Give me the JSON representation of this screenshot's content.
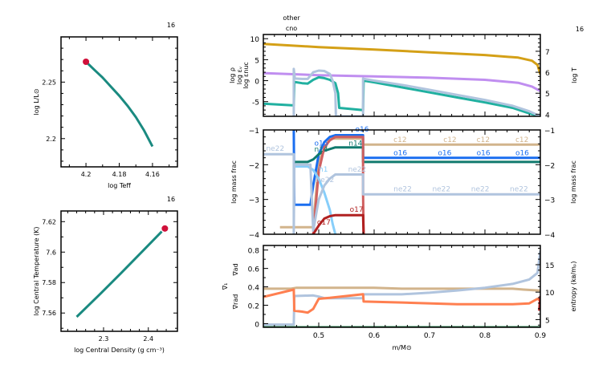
{
  "chart_data": [
    {
      "id": "hr",
      "type": "line",
      "model_number": "16",
      "xlabel": "log Teff",
      "ylabel": "log L/L⊙",
      "xlim": [
        4.215,
        4.145
      ],
      "ylim": [
        2.175,
        2.29
      ],
      "xticks": [
        4.2,
        4.18,
        4.16
      ],
      "xtick_labels": [
        "4.2",
        "4.18",
        "4.16"
      ],
      "yticks": [
        2.2,
        2.25
      ],
      "ytick_labels": [
        "2.2",
        "2.25"
      ],
      "series": [
        {
          "name": "track",
          "color": "#1a8a80",
          "x": [
            4.2,
            4.195,
            4.19,
            4.185,
            4.18,
            4.175,
            4.17,
            4.165,
            4.16
          ],
          "y": [
            2.268,
            2.261,
            2.254,
            2.246,
            2.238,
            2.229,
            2.219,
            2.207,
            2.193
          ]
        }
      ],
      "marker": {
        "x": 4.2,
        "y": 2.268,
        "color": "#d0103a"
      }
    },
    {
      "id": "center",
      "type": "line",
      "model_number": "16",
      "xlabel": "log Central Density (g cm⁻³)",
      "ylabel": "log Central Temperature (K)",
      "xlim": [
        2.205,
        2.465
      ],
      "ylim": [
        7.548,
        7.627
      ],
      "xticks": [
        2.3,
        2.4
      ],
      "xtick_labels": [
        "2.3",
        "2.4"
      ],
      "yticks": [
        7.56,
        7.58,
        7.6,
        7.62
      ],
      "ytick_labels": [
        "7.56",
        "7.58",
        "7.6",
        "7.62"
      ],
      "series": [
        {
          "name": "track",
          "color": "#1a8a80",
          "x": [
            2.24,
            2.29,
            2.34,
            2.39,
            2.43
          ],
          "y": [
            7.5575,
            7.5718,
            7.5865,
            7.6015,
            7.6135
          ]
        }
      ],
      "marker": {
        "x": 2.437,
        "y": 7.6155,
        "color": "#d0103a"
      }
    },
    {
      "id": "profile-top",
      "type": "line",
      "model_number": "16",
      "burn_labels": [
        "other",
        "cno"
      ],
      "xlim": [
        0.4,
        0.9
      ],
      "ylim": [
        -8.5,
        11
      ],
      "y2lim": [
        3.9,
        7.8
      ],
      "yticks": [
        -5,
        0,
        5,
        10
      ],
      "ytick_labels": [
        "-5",
        "0",
        "5",
        "10"
      ],
      "y2ticks": [
        4,
        5,
        6,
        7
      ],
      "y2tick_labels": [
        "4",
        "5",
        "6",
        "7"
      ],
      "left_labels": [
        {
          "text": "log ρ",
          "color": "#c08ef0"
        },
        {
          "text": "log εᵥ",
          "color": "#20b0a0"
        },
        {
          "text": "log εnuc",
          "color": "#b0c4de"
        }
      ],
      "right_label": {
        "text": "log T",
        "color": "#d4a017"
      },
      "series": [
        {
          "name": "log T",
          "axis": "right",
          "color": "#d4a017",
          "x": [
            0.4,
            0.5,
            0.6,
            0.7,
            0.8,
            0.86,
            0.885,
            0.895,
            0.9
          ],
          "y": [
            7.35,
            7.2,
            7.08,
            6.95,
            6.82,
            6.7,
            6.55,
            6.35,
            5.9
          ]
        },
        {
          "name": "log rho",
          "axis": "left",
          "color": "#c08ef0",
          "x": [
            0.4,
            0.5,
            0.6,
            0.7,
            0.8,
            0.86,
            0.885,
            0.9
          ],
          "y": [
            1.8,
            1.3,
            1.0,
            0.7,
            0.2,
            -0.5,
            -1.4,
            -2.5
          ]
        },
        {
          "name": "log eps_grav",
          "axis": "left",
          "color": "#20b0a0",
          "x": [
            0.4,
            0.455,
            0.456,
            0.47,
            0.48,
            0.49,
            0.5,
            0.51,
            0.52,
            0.53,
            0.535,
            0.537,
            0.58,
            0.581,
            0.6,
            0.65,
            0.7,
            0.75,
            0.8,
            0.85,
            0.88,
            0.9
          ],
          "y": [
            -5.5,
            -5.9,
            -0.3,
            -0.6,
            -0.7,
            0.2,
            0.8,
            0.6,
            0.2,
            -0.6,
            -3.0,
            -6.5,
            -7.0,
            0.0,
            -0.4,
            -1.6,
            -2.8,
            -4.0,
            -5.2,
            -6.5,
            -7.8,
            -8.5
          ]
        },
        {
          "name": "log eps_nuc",
          "axis": "left",
          "color": "#b0c4de",
          "x": [
            0.455,
            0.455,
            0.457,
            0.47,
            0.48,
            0.49,
            0.5,
            0.51,
            0.52,
            0.525,
            0.53,
            0.531,
            0.58,
            0.58,
            0.582,
            0.6,
            0.65,
            0.7,
            0.75,
            0.8,
            0.85,
            0.88,
            0.9
          ],
          "y": [
            -8.5,
            2.8,
            0.5,
            0.4,
            0.4,
            2.0,
            2.4,
            2.3,
            1.6,
            0.0,
            -3.0,
            -8.5,
            -8.5,
            0.5,
            0.4,
            0.0,
            -1.0,
            -2.2,
            -3.4,
            -4.6,
            -6.0,
            -7.3,
            -8.5
          ]
        }
      ]
    },
    {
      "id": "profile-mid",
      "type": "line",
      "ylabel": "log mass frac",
      "y2label": "log mass frac",
      "xlim": [
        0.4,
        0.9
      ],
      "ylim": [
        -4,
        -1
      ],
      "yticks": [
        -4,
        -3,
        -2,
        -1
      ],
      "ytick_labels": [
        "−4",
        "−3",
        "−2",
        "−1"
      ],
      "series": [
        {
          "name": "c12",
          "color": "#d2b48c",
          "x": [
            0.43,
            0.455,
            0.49,
            0.5,
            0.52,
            0.58,
            0.58,
            0.9
          ],
          "y": [
            -3.8,
            -3.8,
            -3.8,
            -1.9,
            -1.25,
            -1.25,
            -1.42,
            -1.42
          ]
        },
        {
          "name": "o16",
          "color": "#1a6ef0",
          "x": [
            0.455,
            0.456,
            0.485,
            0.49,
            0.5,
            0.51,
            0.52,
            0.53,
            0.58,
            0.58,
            0.9
          ],
          "y": [
            -1.0,
            -3.15,
            -3.15,
            -2.6,
            -1.7,
            -1.35,
            -1.2,
            -1.15,
            -1.15,
            -1.8,
            -1.8
          ]
        },
        {
          "name": "n14",
          "color": "#107a6e",
          "x": [
            0.455,
            0.48,
            0.49,
            0.5,
            0.51,
            0.53,
            0.58,
            0.58,
            0.9
          ],
          "y": [
            -1.92,
            -1.92,
            -1.85,
            -1.7,
            -1.6,
            -1.5,
            -1.5,
            -1.92,
            -1.92
          ]
        },
        {
          "name": "o18",
          "color": "#d06060",
          "x": [
            0.49,
            0.5,
            0.51,
            0.52,
            0.53,
            0.58,
            0.58,
            0.581
          ],
          "y": [
            -4.0,
            -2.2,
            -1.5,
            -1.3,
            -1.2,
            -1.2,
            -2.8,
            -4.0
          ]
        },
        {
          "name": "h1",
          "color": "#87cefa",
          "x": [
            0.455,
            0.48,
            0.49,
            0.5,
            0.51,
            0.52,
            0.525,
            0.53
          ],
          "y": [
            -2.05,
            -2.05,
            -2.15,
            -2.4,
            -2.8,
            -3.3,
            -3.7,
            -4.0
          ]
        },
        {
          "name": "ne22",
          "color": "#b0c4de",
          "x": [
            0.4,
            0.455,
            0.455,
            0.456,
            0.46,
            0.485,
            0.49,
            0.5,
            0.51,
            0.52,
            0.53,
            0.58,
            0.58,
            0.9
          ],
          "y": [
            -1.7,
            -1.7,
            -4.0,
            -2.0,
            -2.0,
            -2.0,
            -3.9,
            -3.0,
            -2.6,
            -2.4,
            -2.28,
            -2.28,
            -2.85,
            -2.85
          ]
        },
        {
          "name": "o17",
          "color": "#b02020",
          "x": [
            0.49,
            0.5,
            0.51,
            0.52,
            0.53,
            0.58,
            0.58,
            0.581
          ],
          "y": [
            -4.0,
            -3.75,
            -3.55,
            -3.48,
            -3.45,
            -3.45,
            -3.45,
            -4.0
          ]
        }
      ],
      "inline_labels": [
        {
          "text": "ne22",
          "x": 0.405,
          "y": -1.6,
          "color": "#b0c4de"
        },
        {
          "text": "o16",
          "x": 0.492,
          "y": -1.45,
          "color": "#1a6ef0"
        },
        {
          "text": "n14",
          "x": 0.492,
          "y": -1.62,
          "color": "#107a6e"
        },
        {
          "text": "h1",
          "x": 0.5,
          "y": -2.2,
          "color": "#87cefa"
        },
        {
          "text": "ne22",
          "x": 0.495,
          "y": -2.5,
          "color": "#b0c4de"
        },
        {
          "text": "o16",
          "x": 0.566,
          "y": -1.05,
          "color": "#1a6ef0"
        },
        {
          "text": "n14",
          "x": 0.554,
          "y": -1.45,
          "color": "#107a6e"
        },
        {
          "text": "ne22",
          "x": 0.553,
          "y": -2.2,
          "color": "#b0c4de"
        },
        {
          "text": "o17",
          "x": 0.556,
          "y": -3.35,
          "color": "#b02020"
        },
        {
          "text": "o17",
          "x": 0.497,
          "y": -3.72,
          "color": "#b02020"
        },
        {
          "text": "c12",
          "x": 0.635,
          "y": -1.35,
          "color": "#d2b48c"
        },
        {
          "text": "c12",
          "x": 0.725,
          "y": -1.35,
          "color": "#d2b48c"
        },
        {
          "text": "c12",
          "x": 0.785,
          "y": -1.35,
          "color": "#d2b48c"
        },
        {
          "text": "c12",
          "x": 0.855,
          "y": -1.35,
          "color": "#d2b48c"
        },
        {
          "text": "o16",
          "x": 0.635,
          "y": -1.73,
          "color": "#1a6ef0"
        },
        {
          "text": "o16",
          "x": 0.715,
          "y": -1.73,
          "color": "#1a6ef0"
        },
        {
          "text": "o16",
          "x": 0.785,
          "y": -1.73,
          "color": "#1a6ef0"
        },
        {
          "text": "o16",
          "x": 0.855,
          "y": -1.73,
          "color": "#1a6ef0"
        },
        {
          "text": "ne22",
          "x": 0.635,
          "y": -2.77,
          "color": "#b0c4de"
        },
        {
          "text": "ne22",
          "x": 0.705,
          "y": -2.77,
          "color": "#b0c4de"
        },
        {
          "text": "ne22",
          "x": 0.775,
          "y": -2.77,
          "color": "#b0c4de"
        },
        {
          "text": "ne22",
          "x": 0.845,
          "y": -2.77,
          "color": "#b0c4de"
        }
      ]
    },
    {
      "id": "profile-bottom",
      "type": "line",
      "xlabel": "m/M⊙",
      "xlim": [
        0.4,
        0.9
      ],
      "xticks": [
        0.5,
        0.6,
        0.7,
        0.8,
        0.9
      ],
      "xtick_labels": [
        "0.5",
        "0.6",
        "0.7",
        "0.8",
        "0.9"
      ],
      "ylim": [
        -0.04,
        0.85
      ],
      "yticks": [
        0,
        0.2,
        0.4,
        0.6,
        0.8
      ],
      "ytick_labels": [
        "0",
        "0.2",
        "0.4",
        "0.6",
        "0.8"
      ],
      "y2lim": [
        3.6,
        18.5
      ],
      "y2ticks": [
        5,
        10,
        15
      ],
      "y2tick_labels": [
        "5",
        "10",
        "15"
      ],
      "left_labels": [
        {
          "text": "∇ad",
          "color": "#d2b48c"
        },
        {
          "text": "∇₁",
          "color": "#b02020"
        },
        {
          "text": "∇rad",
          "color": "#ff7f50"
        }
      ],
      "y2label": "entropy (kʙ/mₚ)",
      "series": [
        {
          "name": "grad_ad",
          "axis": "left",
          "color": "#d2b48c",
          "x": [
            0.4,
            0.45,
            0.46,
            0.6,
            0.65,
            0.85,
            0.87,
            0.9
          ],
          "y": [
            0.38,
            0.38,
            0.39,
            0.39,
            0.38,
            0.38,
            0.37,
            0.36
          ]
        },
        {
          "name": "entropy",
          "axis": "right",
          "color": "#b0c4de",
          "x": [
            0.4,
            0.455,
            0.456,
            0.49,
            0.5,
            0.51,
            0.58,
            0.581,
            0.65,
            0.7,
            0.75,
            0.8,
            0.85,
            0.88,
            0.895,
            0.9
          ],
          "y": [
            4.1,
            4.1,
            9.3,
            9.4,
            9.2,
            8.9,
            8.9,
            9.6,
            9.6,
            9.9,
            10.3,
            10.8,
            11.5,
            12.3,
            13.5,
            17.5
          ]
        },
        {
          "name": "grad_rad",
          "axis": "left",
          "color": "#ff7f50",
          "x": [
            0.4,
            0.455,
            0.456,
            0.47,
            0.48,
            0.49,
            0.5,
            0.52,
            0.58,
            0.581,
            0.65,
            0.75,
            0.85,
            0.88,
            0.895,
            0.9
          ],
          "y": [
            0.29,
            0.37,
            0.14,
            0.13,
            0.12,
            0.16,
            0.27,
            0.28,
            0.32,
            0.24,
            0.23,
            0.21,
            0.21,
            0.22,
            0.27,
            0.25
          ]
        },
        {
          "name": "grad_T",
          "axis": "left",
          "color": "#b02020",
          "x": [
            0.898,
            0.9
          ],
          "y": [
            0.14,
            0.3
          ]
        },
        {
          "name": "mixing",
          "axis": "left",
          "color": "#2e8b57",
          "x": [
            0.4,
            0.9
          ],
          "y": [
            -0.04,
            -0.04
          ]
        }
      ]
    }
  ]
}
